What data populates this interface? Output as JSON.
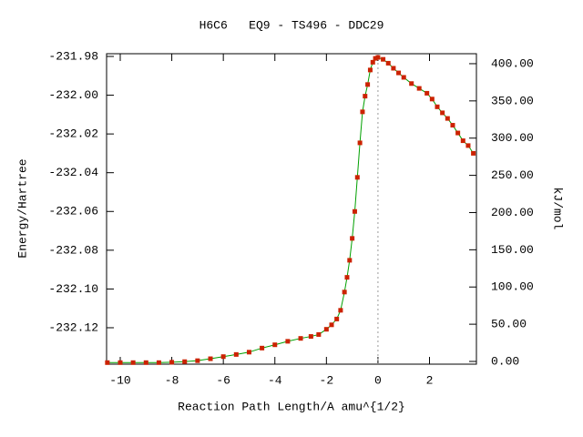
{
  "chart_data": {
    "type": "line",
    "title": "H6C6   EQ9 - TS496 - DDC29",
    "x_label": "Reaction Path Length/A amu^{1/2}",
    "y_label": "Energy/Hartree",
    "y2_label": "kJ/mol",
    "x": [
      -10.5,
      -10,
      -9.5,
      -9,
      -8.5,
      -8,
      -7.5,
      -7,
      -6.5,
      -6,
      -5.5,
      -5,
      -4.5,
      -4,
      -3.5,
      -3,
      -2.6,
      -2.3,
      -2.0,
      -1.8,
      -1.6,
      -1.45,
      -1.3,
      -1.2,
      -1.1,
      -1.0,
      -0.9,
      -0.8,
      -0.7,
      -0.6,
      -0.5,
      -0.4,
      -0.3,
      -0.2,
      -0.1,
      0,
      0.2,
      0.4,
      0.6,
      0.8,
      1.0,
      1.3,
      1.6,
      1.9,
      2.1,
      2.3,
      2.5,
      2.7,
      2.9,
      3.1,
      3.3,
      3.5,
      3.7
    ],
    "series": [
      {
        "name": "Energy",
        "color": "#00a000",
        "marker_color": "#cc2200",
        "values": [
          -232.138,
          -232.138,
          -232.138,
          -232.138,
          -232.138,
          -232.1378,
          -232.1375,
          -232.137,
          -232.136,
          -232.1349,
          -232.1338,
          -232.1326,
          -232.1305,
          -232.1288,
          -232.127,
          -232.1255,
          -232.1245,
          -232.1235,
          -232.1208,
          -232.1185,
          -232.1155,
          -232.111,
          -232.1016,
          -232.094,
          -232.0852,
          -232.0739,
          -232.06,
          -232.0424,
          -232.0246,
          -232.0086,
          -232.0005,
          -231.9945,
          -231.987,
          -231.983,
          -231.981,
          -231.9805,
          -231.9815,
          -231.9835,
          -231.9861,
          -231.9885,
          -231.9908,
          -231.994,
          -231.9965,
          -231.999,
          -232.002,
          -232.006,
          -232.0091,
          -232.012,
          -232.0155,
          -232.0195,
          -232.0235,
          -232.026,
          -232.03
        ]
      }
    ],
    "xlim": [
      -10.53,
      3.82
    ],
    "xticks": [
      -10,
      -8,
      -6,
      -4,
      -2,
      0,
      2
    ],
    "ylim": [
      -232.1388,
      -231.9786
    ],
    "yticks": [
      -232.12,
      {
        "value": -232.1,
        "label": "-232.10"
      },
      -232.08,
      -232.06,
      -232.04,
      -232.02,
      {
        "value": -232,
        "label": "-232.00"
      },
      -231.98
    ],
    "y2lim": [
      -3.67,
      413.4
    ],
    "y2ticks": [
      {
        "value": 0,
        "label": "0.00"
      },
      {
        "value": 50,
        "label": "50.00"
      },
      {
        "value": 100,
        "label": "100.00"
      },
      {
        "value": 150,
        "label": "150.00"
      },
      {
        "value": 200,
        "label": "200.00"
      },
      {
        "value": 250,
        "label": "250.00"
      },
      {
        "value": 300,
        "label": "300.00"
      },
      {
        "value": 350,
        "label": "350.00"
      },
      {
        "value": 400,
        "label": "400.00"
      }
    ],
    "vline_x": 0,
    "grid": false
  }
}
